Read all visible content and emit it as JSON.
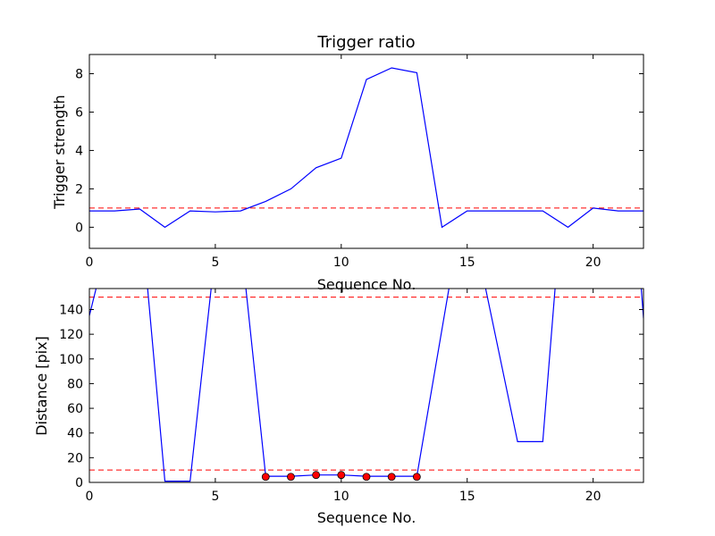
{
  "chart_data": [
    {
      "type": "line",
      "title": "Trigger ratio",
      "xlabel": "Sequence No.",
      "ylabel": "Trigger strength",
      "xlim": [
        0,
        22
      ],
      "ylim": [
        -1.1,
        9.0
      ],
      "xticks": [
        0,
        5,
        10,
        15,
        20
      ],
      "yticks": [
        0,
        2,
        4,
        6,
        8
      ],
      "grid": false,
      "x": [
        0,
        1,
        2,
        3,
        4,
        5,
        6,
        7,
        8,
        9,
        10,
        11,
        12,
        13,
        14,
        15,
        16,
        17,
        18,
        19,
        20,
        21,
        22
      ],
      "series": [
        {
          "values": [
            0.85,
            0.85,
            0.95,
            0.0,
            0.85,
            0.8,
            0.85,
            1.35,
            2.0,
            3.1,
            3.6,
            7.7,
            8.3,
            8.05,
            0.0,
            0.85,
            0.85,
            0.85,
            0.85,
            0.0,
            1.0,
            0.85,
            0.85
          ],
          "color": "#0000ff"
        }
      ],
      "threshold": {
        "value": 1.0,
        "color": "#ff0000",
        "style": "dashed"
      }
    },
    {
      "type": "line",
      "title": "",
      "xlabel": "Sequence No.",
      "ylabel": "Distance [pix]",
      "xlim": [
        0,
        22
      ],
      "ylim": [
        0,
        157
      ],
      "xticks": [
        0,
        5,
        10,
        15,
        20
      ],
      "yticks": [
        0,
        20,
        40,
        60,
        80,
        100,
        120,
        140
      ],
      "grid": false,
      "x": [
        0,
        0.3,
        2.3,
        3,
        4,
        4.85,
        6.2,
        7,
        8,
        9,
        10,
        11,
        12,
        13,
        14.3,
        15.7,
        17,
        18,
        18.5,
        21.9,
        22
      ],
      "series": [
        {
          "values": [
            135,
            160,
            160,
            1,
            1,
            160,
            160,
            5,
            5,
            6,
            6,
            5,
            5,
            5,
            160,
            160,
            33,
            33,
            160,
            160,
            133
          ],
          "color": "#0000ff"
        }
      ],
      "markers": {
        "x": [
          7,
          8,
          9,
          10,
          11,
          12,
          13
        ],
        "values": [
          4.5,
          4.5,
          6,
          6,
          4.5,
          4.5,
          4.5
        ],
        "color": "#ff0000"
      },
      "thresholds": [
        {
          "value": 150,
          "color": "#ff0000",
          "style": "dashed"
        },
        {
          "value": 10,
          "color": "#ff0000",
          "style": "dashed"
        }
      ]
    }
  ]
}
